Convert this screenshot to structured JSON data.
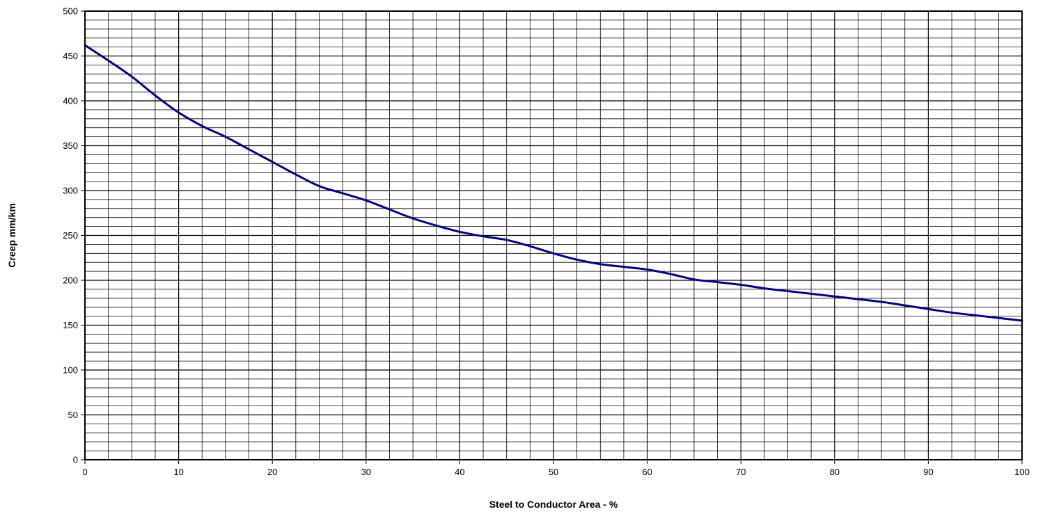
{
  "chart_data": {
    "type": "line",
    "title": "",
    "xlabel": "Steel to Conductor Area - %",
    "ylabel": "Creep mm/km",
    "xlim": [
      0,
      100
    ],
    "ylim": [
      0,
      500
    ],
    "x_ticks": [
      0,
      10,
      20,
      30,
      40,
      50,
      60,
      70,
      80,
      90,
      100
    ],
    "y_ticks": [
      0,
      50,
      100,
      150,
      200,
      250,
      300,
      350,
      400,
      450,
      500
    ],
    "x_minor_step": 2.5,
    "y_minor_step": 10,
    "grid": true,
    "legend": "none",
    "series": [
      {
        "color": "#000080",
        "x": [
          0,
          2.5,
          5,
          7.5,
          10,
          12.5,
          15,
          17.5,
          20,
          22.5,
          25,
          27.5,
          30,
          32.5,
          35,
          37.5,
          40,
          42.5,
          45,
          47.5,
          50,
          52.5,
          55,
          57.5,
          60,
          62.5,
          65,
          67.5,
          70,
          72.5,
          75,
          77.5,
          80,
          82.5,
          85,
          87.5,
          90,
          92.5,
          95,
          97.5,
          100
        ],
        "y": [
          462,
          445,
          427,
          406,
          387,
          372,
          360,
          346,
          332,
          318,
          305,
          297,
          289,
          279,
          269,
          261,
          254,
          249,
          245,
          238,
          230,
          223,
          218,
          215,
          212,
          207,
          201,
          198,
          195,
          191,
          188,
          185,
          182,
          179,
          176,
          172,
          168,
          164,
          161,
          158,
          155
        ]
      }
    ]
  }
}
